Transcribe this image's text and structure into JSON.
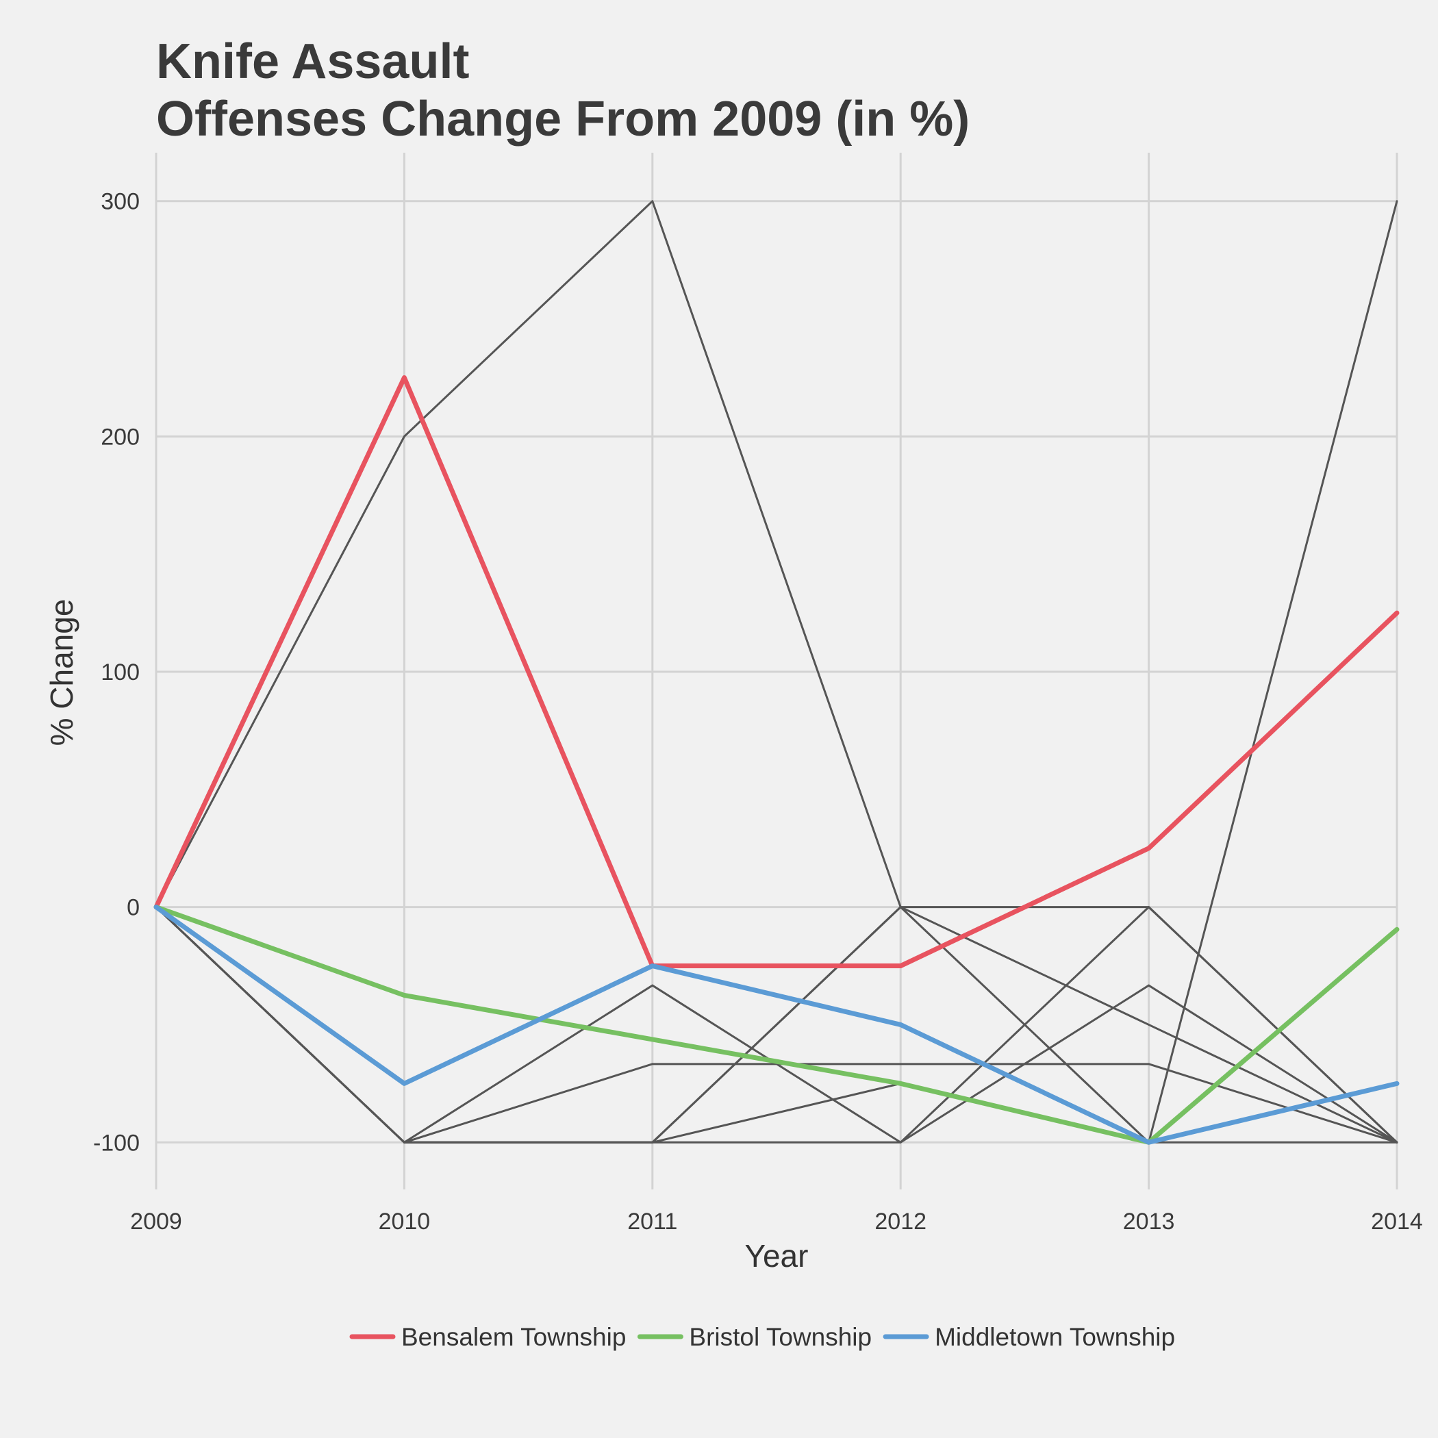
{
  "chart_data": {
    "type": "line",
    "title_lines": [
      "Knife Assault",
      "Offenses Change From 2009 (in %)"
    ],
    "xlabel": "Year",
    "ylabel": "% Change",
    "x": [
      2009,
      2010,
      2011,
      2012,
      2013,
      2014
    ],
    "x_tick_labels": [
      "2009",
      "2010",
      "2011",
      "2012",
      "2013",
      "2014"
    ],
    "y_ticks": [
      -100,
      0,
      100,
      200,
      300
    ],
    "y_tick_labels": [
      "-100",
      "0",
      "100",
      "200",
      "300"
    ],
    "xlim": [
      2009,
      2014
    ],
    "ylim": [
      -120,
      320
    ],
    "grid": true,
    "legend_position": "bottom",
    "background_color": "#f1f1f1",
    "grid_color": "#d3d3d3",
    "background_series_color": "#555555",
    "background_series": [
      {
        "values": [
          0,
          200,
          300,
          0,
          -100,
          300
        ]
      },
      {
        "values": [
          0,
          -100,
          -33.3,
          -100,
          0,
          -100
        ]
      },
      {
        "values": [
          0,
          -100,
          -66.7,
          -66.7,
          -66.7,
          -100
        ]
      },
      {
        "values": [
          0,
          -100,
          -100,
          -75,
          -100,
          -100
        ]
      },
      {
        "values": [
          0,
          -100,
          -100,
          0,
          0,
          -100
        ]
      },
      {
        "values": [
          0,
          -100,
          -100,
          -100,
          -33.3,
          -100
        ]
      },
      {
        "values": [
          0,
          -100,
          -100,
          0,
          -50,
          -100
        ]
      }
    ],
    "series": [
      {
        "name": "Bensalem Township",
        "color": "#e8535f",
        "values": [
          0,
          225,
          -25,
          -25,
          25,
          125
        ]
      },
      {
        "name": "Bristol Township",
        "color": "#76c061",
        "values": [
          0,
          -37.5,
          -56.25,
          -75,
          -100,
          -9.5
        ]
      },
      {
        "name": "Middletown Township",
        "color": "#5b9bd5",
        "values": [
          0,
          -75,
          -25,
          -50,
          -100,
          -75
        ]
      }
    ]
  }
}
